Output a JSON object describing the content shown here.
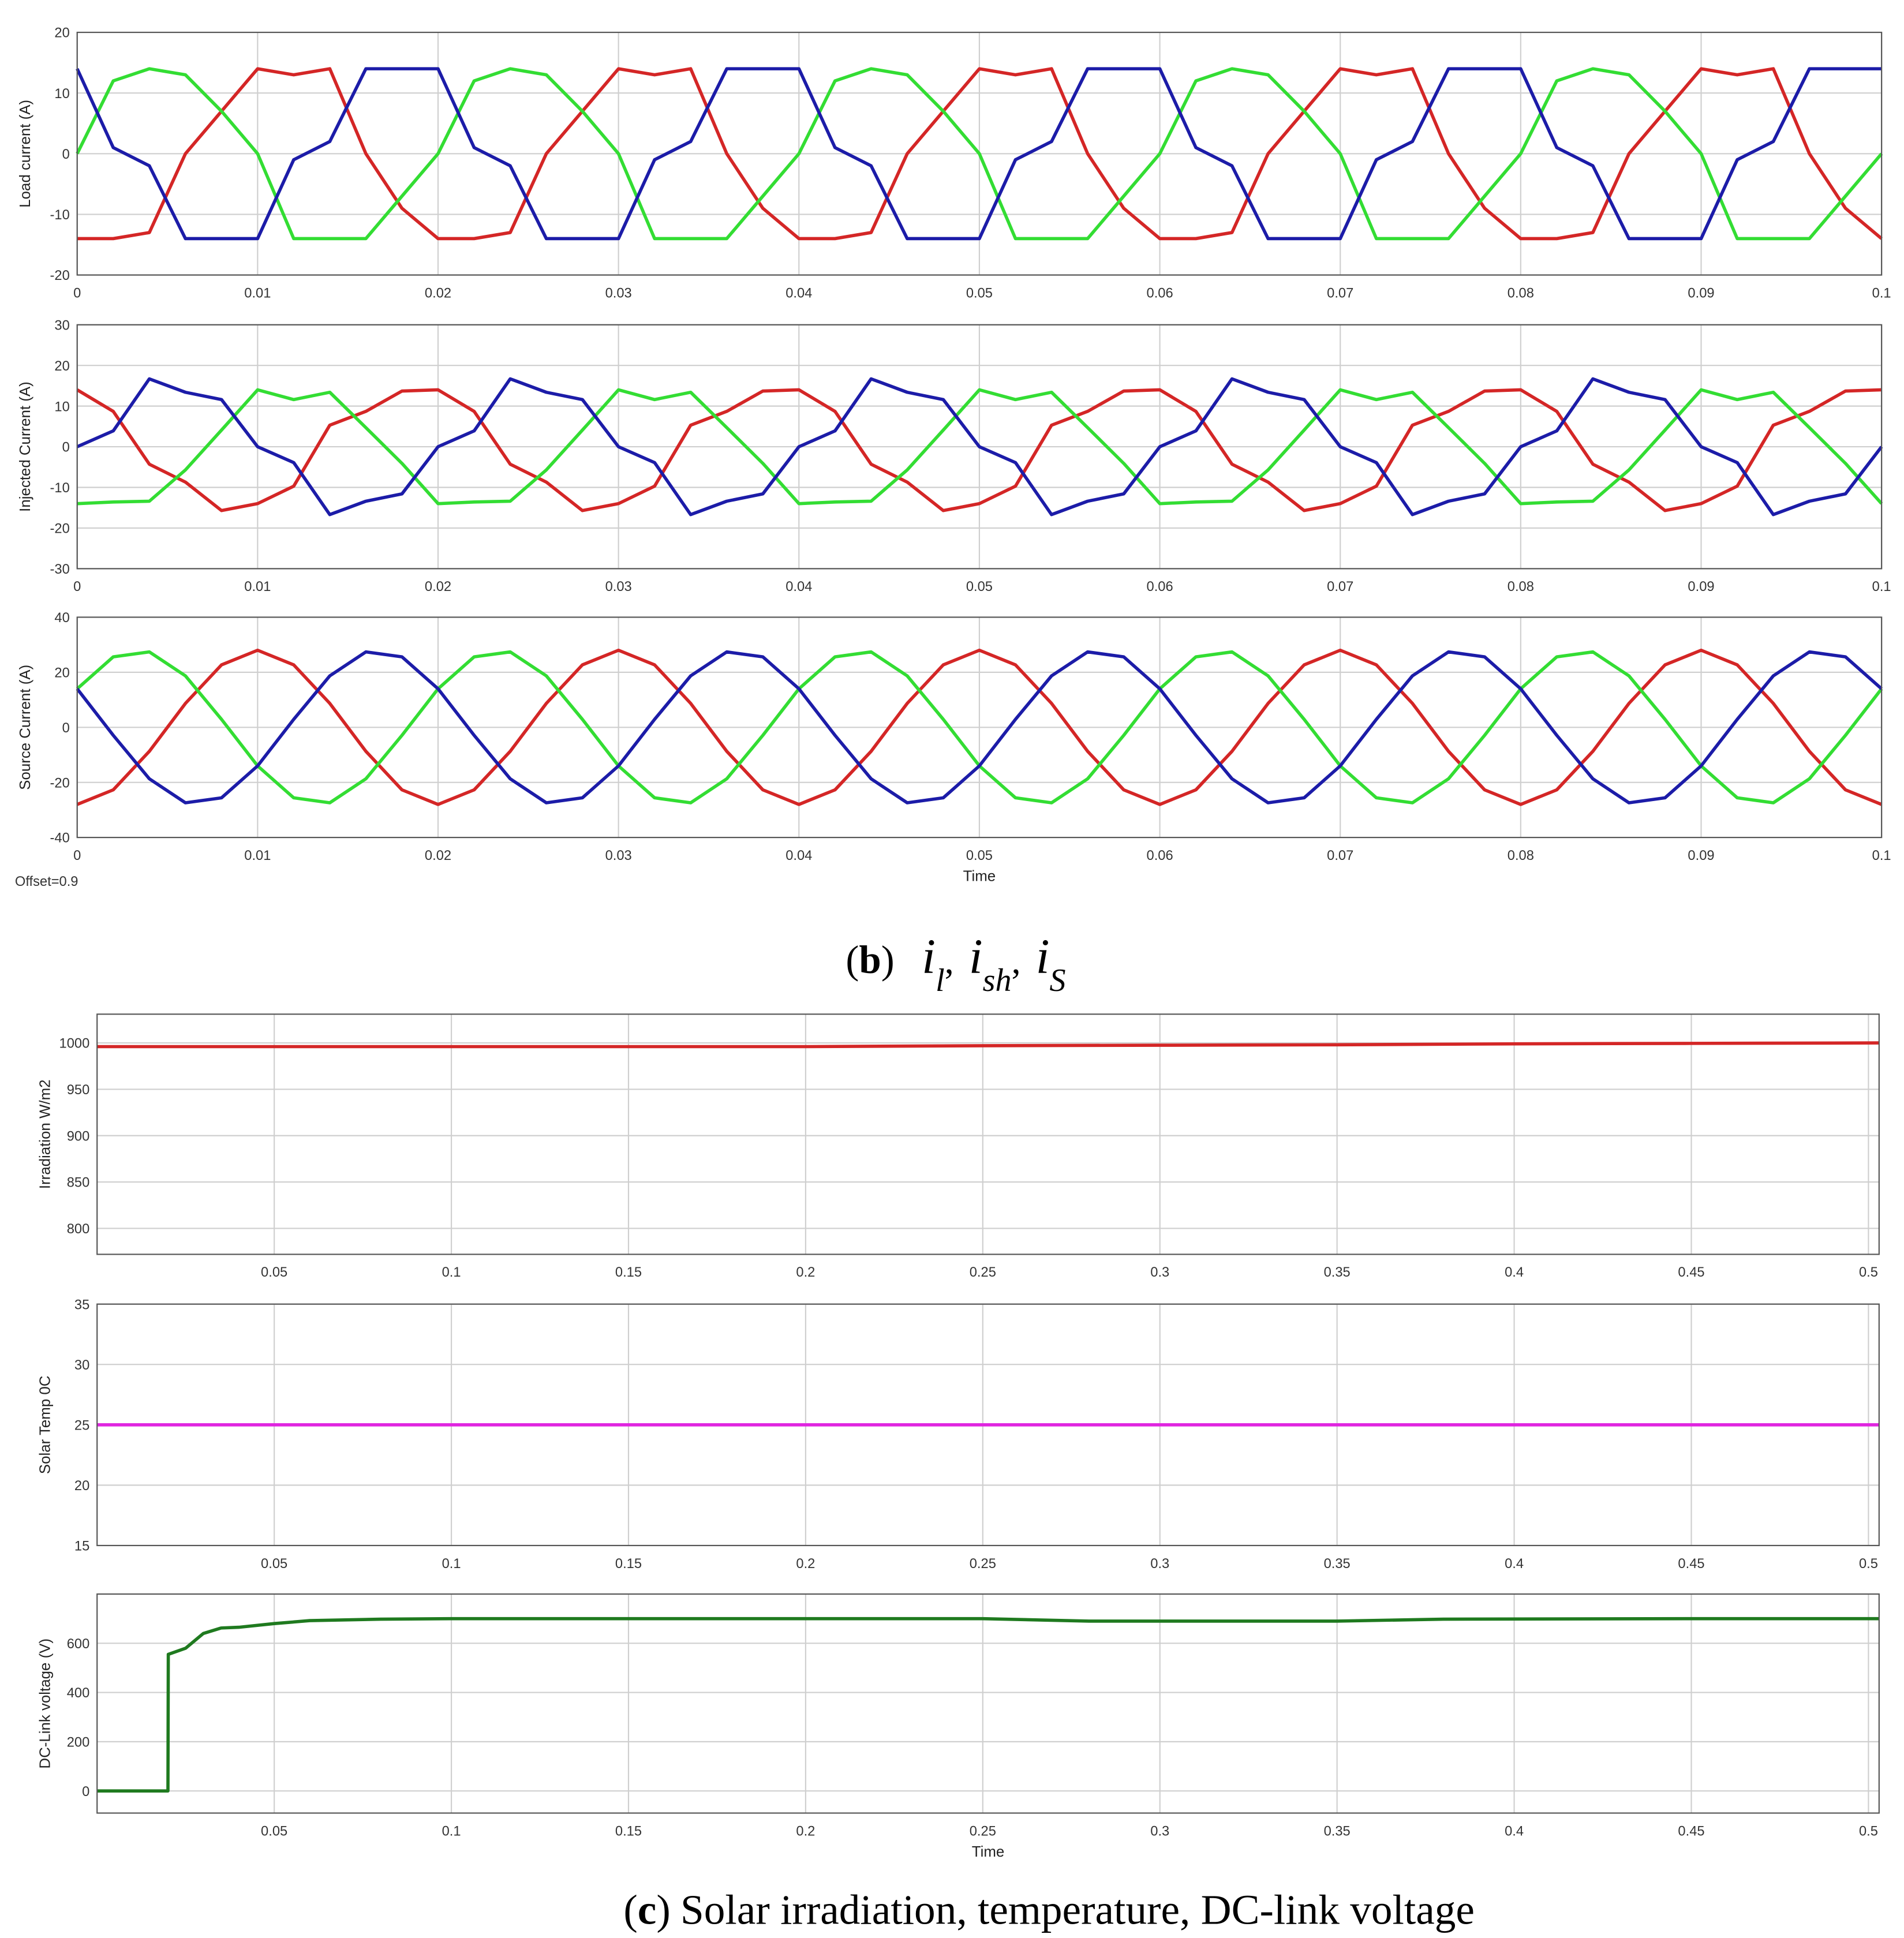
{
  "chart_data": [
    {
      "type": "line",
      "ylabel": "Load current (A)",
      "xlim": [
        0,
        0.1
      ],
      "ylim": [
        -20,
        20
      ],
      "xticks": [
        0,
        0.01,
        0.02,
        0.03,
        0.04,
        0.05,
        0.06,
        0.07,
        0.08,
        0.09,
        0.1
      ],
      "yticks": [
        -20,
        -10,
        0,
        10,
        20
      ],
      "grid": true,
      "x": [
        0,
        0.002,
        0.004,
        0.006,
        0.008,
        0.01,
        0.012,
        0.014,
        0.016,
        0.018,
        0.02,
        0.022,
        0.024,
        0.026,
        0.028,
        0.03,
        0.032,
        0.034,
        0.036,
        0.038,
        0.04,
        0.042,
        0.044,
        0.046,
        0.048,
        0.05,
        0.052,
        0.054,
        0.056,
        0.058,
        0.06,
        0.062,
        0.064,
        0.066,
        0.068,
        0.07,
        0.072,
        0.074,
        0.076,
        0.078,
        0.08,
        0.082,
        0.084,
        0.086,
        0.088,
        0.09,
        0.092,
        0.094,
        0.096,
        0.098,
        0.1
      ],
      "series": [
        {
          "color": "#d42626",
          "values": [
            -14,
            -14,
            -13,
            0,
            7,
            14,
            13,
            14,
            0,
            -9,
            -14,
            -14,
            -13,
            0,
            7,
            14,
            13,
            14,
            0,
            -9,
            -14,
            -14,
            -13,
            0,
            7,
            14,
            13,
            14,
            0,
            -9,
            -14,
            -14,
            -13,
            0,
            7,
            14,
            13,
            14,
            0,
            -9,
            -14,
            -14,
            -13,
            0,
            7,
            14,
            13,
            14,
            0,
            -9,
            -14
          ]
        },
        {
          "color": "#33dd33",
          "values": [
            0,
            12,
            14,
            13,
            7,
            0,
            -14,
            -14,
            -14,
            -7,
            0,
            12,
            14,
            13,
            7,
            0,
            -14,
            -14,
            -14,
            -7,
            0,
            12,
            14,
            13,
            7,
            0,
            -14,
            -14,
            -14,
            -7,
            0,
            12,
            14,
            13,
            7,
            0,
            -14,
            -14,
            -14,
            -7,
            0,
            12,
            14,
            13,
            7,
            0,
            -14,
            -14,
            -14,
            -7,
            0
          ]
        },
        {
          "color": "#1c1ca8",
          "values": [
            14,
            1,
            -2,
            -14,
            -14,
            -14,
            -1,
            2,
            14,
            14,
            14,
            1,
            -2,
            -14,
            -14,
            -14,
            -1,
            2,
            14,
            14,
            14,
            1,
            -2,
            -14,
            -14,
            -14,
            -1,
            2,
            14,
            14,
            14,
            1,
            -2,
            -14,
            -14,
            -14,
            -1,
            2,
            14,
            14,
            14,
            1,
            -2,
            -14,
            -14,
            -14,
            -1,
            2,
            14,
            14,
            14
          ]
        }
      ]
    },
    {
      "type": "line",
      "ylabel": "Injected Current (A)",
      "xlim": [
        0,
        0.1
      ],
      "ylim": [
        -30,
        30
      ],
      "xticks": [
        0,
        0.01,
        0.02,
        0.03,
        0.04,
        0.05,
        0.06,
        0.07,
        0.08,
        0.09,
        0.1
      ],
      "yticks": [
        -30,
        -20,
        -10,
        0,
        10,
        20,
        30
      ],
      "grid": true,
      "x": [
        0,
        0.002,
        0.004,
        0.006,
        0.008,
        0.01,
        0.012,
        0.014,
        0.016,
        0.018,
        0.02,
        0.022,
        0.024,
        0.026,
        0.028,
        0.03,
        0.032,
        0.034,
        0.036,
        0.038,
        0.04,
        0.042,
        0.044,
        0.046,
        0.048,
        0.05,
        0.052,
        0.054,
        0.056,
        0.058,
        0.06,
        0.062,
        0.064,
        0.066,
        0.068,
        0.07,
        0.072,
        0.074,
        0.076,
        0.078,
        0.08,
        0.082,
        0.084,
        0.086,
        0.088,
        0.09,
        0.092,
        0.094,
        0.096,
        0.098,
        0.1
      ],
      "series": [
        {
          "color": "#d42626",
          "values": [
            14,
            8.7,
            -4.3,
            -8.7,
            -15.7,
            -14,
            -9.7,
            5.3,
            8.7,
            13.7,
            14,
            8.7,
            -4.3,
            -8.7,
            -15.7,
            -14,
            -9.7,
            5.3,
            8.7,
            13.7,
            14,
            8.7,
            -4.3,
            -8.7,
            -15.7,
            -14,
            -9.7,
            5.3,
            8.7,
            13.7,
            14,
            8.7,
            -4.3,
            -8.7,
            -15.7,
            -14,
            -9.7,
            5.3,
            8.7,
            13.7,
            14,
            8.7,
            -4.3,
            -8.7,
            -15.7,
            -14,
            -9.7,
            5.3,
            8.7,
            13.7,
            14
          ]
        },
        {
          "color": "#33dd33",
          "values": [
            -14,
            -13.6,
            -13.4,
            -5.7,
            4.1,
            14,
            11.6,
            13.4,
            4.7,
            -4.1,
            -14,
            -13.6,
            -13.4,
            -5.7,
            4.1,
            14,
            11.6,
            13.4,
            4.7,
            -4.1,
            -14,
            -13.6,
            -13.4,
            -5.7,
            4.1,
            14,
            11.6,
            13.4,
            4.7,
            -4.1,
            -14,
            -13.6,
            -13.4,
            -5.7,
            4.1,
            14,
            11.6,
            13.4,
            4.7,
            -4.1,
            -14,
            -13.6,
            -13.4,
            -5.7,
            4.1,
            14,
            11.6,
            13.4,
            4.7,
            -4.1,
            -14
          ]
        },
        {
          "color": "#1c1ca8",
          "values": [
            0,
            3.9,
            16.7,
            13.4,
            11.6,
            0,
            -3.9,
            -16.7,
            -13.4,
            -11.6,
            0,
            3.9,
            16.7,
            13.4,
            11.6,
            0,
            -3.9,
            -16.7,
            -13.4,
            -11.6,
            0,
            3.9,
            16.7,
            13.4,
            11.6,
            0,
            -3.9,
            -16.7,
            -13.4,
            -11.6,
            0,
            3.9,
            16.7,
            13.4,
            11.6,
            0,
            -3.9,
            -16.7,
            -13.4,
            -11.6,
            0,
            3.9,
            16.7,
            13.4,
            11.6,
            0,
            -3.9,
            -16.7,
            -13.4,
            -11.6,
            0
          ]
        }
      ]
    },
    {
      "type": "line",
      "ylabel": "Source Current (A)",
      "xlabel": "Time",
      "annotation": "Offset=0.9",
      "xlim": [
        0,
        0.1
      ],
      "ylim": [
        -40,
        40
      ],
      "xticks": [
        0,
        0.01,
        0.02,
        0.03,
        0.04,
        0.05,
        0.06,
        0.07,
        0.08,
        0.09,
        0.1
      ],
      "yticks": [
        -40,
        -20,
        0,
        20,
        40
      ],
      "grid": true,
      "x": [
        0,
        0.002,
        0.004,
        0.006,
        0.008,
        0.01,
        0.012,
        0.014,
        0.016,
        0.018,
        0.02,
        0.022,
        0.024,
        0.026,
        0.028,
        0.03,
        0.032,
        0.034,
        0.036,
        0.038,
        0.04,
        0.042,
        0.044,
        0.046,
        0.048,
        0.05,
        0.052,
        0.054,
        0.056,
        0.058,
        0.06,
        0.062,
        0.064,
        0.066,
        0.068,
        0.07,
        0.072,
        0.074,
        0.076,
        0.078,
        0.08,
        0.082,
        0.084,
        0.086,
        0.088,
        0.09,
        0.092,
        0.094,
        0.096,
        0.098,
        0.1
      ],
      "series": [
        {
          "color": "#d42626",
          "values": [
            -28,
            -22.7,
            -8.7,
            8.7,
            22.7,
            28,
            22.7,
            8.7,
            -8.7,
            -22.7,
            -28,
            -22.7,
            -8.7,
            8.7,
            22.7,
            28,
            22.7,
            8.7,
            -8.7,
            -22.7,
            -28,
            -22.7,
            -8.7,
            8.7,
            22.7,
            28,
            22.7,
            8.7,
            -8.7,
            -22.7,
            -28,
            -22.7,
            -8.7,
            8.7,
            22.7,
            28,
            22.7,
            8.7,
            -8.7,
            -22.7,
            -28,
            -22.7,
            -8.7,
            8.7,
            22.7,
            28,
            22.7,
            8.7,
            -8.7,
            -22.7,
            -28
          ]
        },
        {
          "color": "#33dd33",
          "values": [
            14,
            25.6,
            27.4,
            18.7,
            2.9,
            -14,
            -25.6,
            -27.4,
            -18.7,
            -2.9,
            14,
            25.6,
            27.4,
            18.7,
            2.9,
            -14,
            -25.6,
            -27.4,
            -18.7,
            -2.9,
            14,
            25.6,
            27.4,
            18.7,
            2.9,
            -14,
            -25.6,
            -27.4,
            -18.7,
            -2.9,
            14,
            25.6,
            27.4,
            18.7,
            2.9,
            -14,
            -25.6,
            -27.4,
            -18.7,
            -2.9,
            14,
            25.6,
            27.4,
            18.7,
            2.9,
            -14,
            -25.6,
            -27.4,
            -18.7,
            -2.9,
            14
          ]
        },
        {
          "color": "#1c1ca8",
          "values": [
            14,
            -2.9,
            -18.7,
            -27.4,
            -25.6,
            -14,
            2.9,
            18.7,
            27.4,
            25.6,
            14,
            -2.9,
            -18.7,
            -27.4,
            -25.6,
            -14,
            2.9,
            18.7,
            27.4,
            25.6,
            14,
            -2.9,
            -18.7,
            -27.4,
            -25.6,
            -14,
            2.9,
            18.7,
            27.4,
            25.6,
            14,
            -2.9,
            -18.7,
            -27.4,
            -25.6,
            -14,
            2.9,
            18.7,
            27.4,
            25.6,
            14,
            -2.9,
            -18.7,
            -27.4,
            -25.6,
            -14,
            2.9,
            18.7,
            27.4,
            25.6,
            14
          ]
        }
      ]
    },
    {
      "type": "line",
      "ylabel": "Irradiation W/m2",
      "xlim": [
        0,
        0.503
      ],
      "ylim": [
        772,
        1031
      ],
      "xticks": [
        0.05,
        0.1,
        0.15,
        0.2,
        0.25,
        0.3,
        0.35,
        0.4,
        0.45,
        0.5
      ],
      "yticks": [
        800,
        850,
        900,
        950,
        1000
      ],
      "grid": true,
      "x": [
        0,
        0.05,
        0.1,
        0.15,
        0.2,
        0.25,
        0.3,
        0.35,
        0.4,
        0.45,
        0.503
      ],
      "series": [
        {
          "color": "#d42626",
          "values": [
            996,
            996,
            996,
            996,
            996,
            997,
            997.5,
            998,
            999,
            999.5,
            1000
          ]
        }
      ]
    },
    {
      "type": "line",
      "ylabel": "Solar Temp 0C",
      "xlim": [
        0,
        0.503
      ],
      "ylim": [
        15,
        35
      ],
      "xticks": [
        0.05,
        0.1,
        0.15,
        0.2,
        0.25,
        0.3,
        0.35,
        0.4,
        0.45,
        0.5
      ],
      "yticks": [
        15,
        20,
        25,
        30,
        35
      ],
      "grid": true,
      "x": [
        0,
        0.503
      ],
      "series": [
        {
          "color": "#e025e0",
          "values": [
            25,
            25
          ]
        }
      ]
    },
    {
      "type": "line",
      "ylabel": "DC-Link voltage (V)",
      "xlabel": "Time",
      "xlim": [
        0,
        0.503
      ],
      "ylim": [
        -90,
        800
      ],
      "xticks": [
        0.05,
        0.1,
        0.15,
        0.2,
        0.25,
        0.3,
        0.35,
        0.4,
        0.45,
        0.5
      ],
      "yticks": [
        0,
        200,
        400,
        600
      ],
      "grid": true,
      "x": [
        0,
        0.02,
        0.0201,
        0.025,
        0.03,
        0.035,
        0.04,
        0.05,
        0.06,
        0.08,
        0.1,
        0.2,
        0.25,
        0.28,
        0.35,
        0.38,
        0.45,
        0.503
      ],
      "series": [
        {
          "color": "#1f7a1f",
          "values": [
            0,
            0,
            555,
            580,
            640,
            662,
            665,
            680,
            692,
            698,
            700,
            700,
            700,
            690,
            690,
            698,
            700,
            700
          ]
        }
      ]
    }
  ],
  "captions": [
    {
      "prefix": "(",
      "label": "b",
      "suffix": ")",
      "separator": ",",
      "terms": [
        {
          "base": "i",
          "sub": "l"
        },
        {
          "base": "i",
          "sub": "sh"
        },
        {
          "base": "i",
          "sub": "S"
        }
      ]
    },
    {
      "prefix": "(",
      "label": "c",
      "suffix": ")",
      "text": "Solar irradiation, temperature, DC-link voltage"
    }
  ]
}
